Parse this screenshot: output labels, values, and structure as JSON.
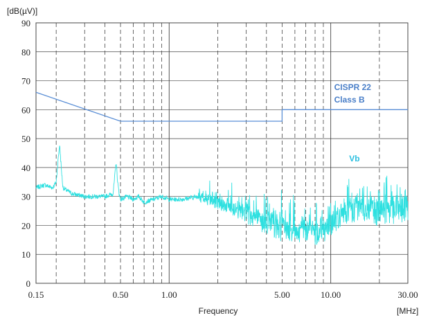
{
  "chart_data": {
    "type": "line",
    "title": "",
    "xlabel": "Frequency",
    "x_unit": "[MHz]",
    "y_unit": "[dB(µV)]",
    "x_scale": "log",
    "xlim": [
      0.15,
      30.0
    ],
    "ylim": [
      0,
      90
    ],
    "x_tick_labels": [
      "0.15",
      "0.50",
      "1.00",
      "5.00",
      "10.00",
      "30.00"
    ],
    "y_tick_labels": [
      "0",
      "10",
      "20",
      "30",
      "40",
      "50",
      "60",
      "70",
      "80",
      "90"
    ],
    "grid": true,
    "colors": {
      "limit": "#5b8fd6",
      "measurement": "#2ee0e0",
      "limit_label": "#4a7fc8",
      "measurement_label": "#2bbfe0"
    },
    "series": [
      {
        "name": "CISPR 22 Class B",
        "name_lines": [
          "CISPR 22",
          "Class B"
        ],
        "x": [
          0.15,
          0.5,
          0.5,
          5.0,
          5.0,
          30.0
        ],
        "y": [
          66,
          56,
          56,
          56,
          60,
          60
        ]
      },
      {
        "name": "Vb",
        "x": [
          0.15,
          0.17,
          0.19,
          0.2,
          0.205,
          0.21,
          0.215,
          0.22,
          0.25,
          0.3,
          0.35,
          0.4,
          0.45,
          0.47,
          0.48,
          0.49,
          0.5,
          0.55,
          0.6,
          0.65,
          0.7,
          0.8,
          0.9,
          1.0,
          1.2,
          1.5,
          2.0,
          2.5,
          3.0,
          3.5,
          4.0,
          4.5,
          5.0,
          6.0,
          7.0,
          8.0,
          9.0,
          10.0,
          12.0,
          15.0,
          18.0,
          20.0,
          25.0,
          30.0
        ],
        "y": [
          33,
          34,
          33,
          35,
          42,
          48,
          40,
          33,
          31,
          30,
          30,
          30,
          31,
          42,
          35,
          31,
          29,
          30,
          29,
          30,
          28,
          29,
          30,
          29,
          29,
          30,
          28,
          26,
          24,
          22,
          21,
          20,
          19,
          18,
          18,
          17,
          18,
          20,
          24,
          26,
          25,
          24,
          25,
          26
        ]
      }
    ]
  }
}
